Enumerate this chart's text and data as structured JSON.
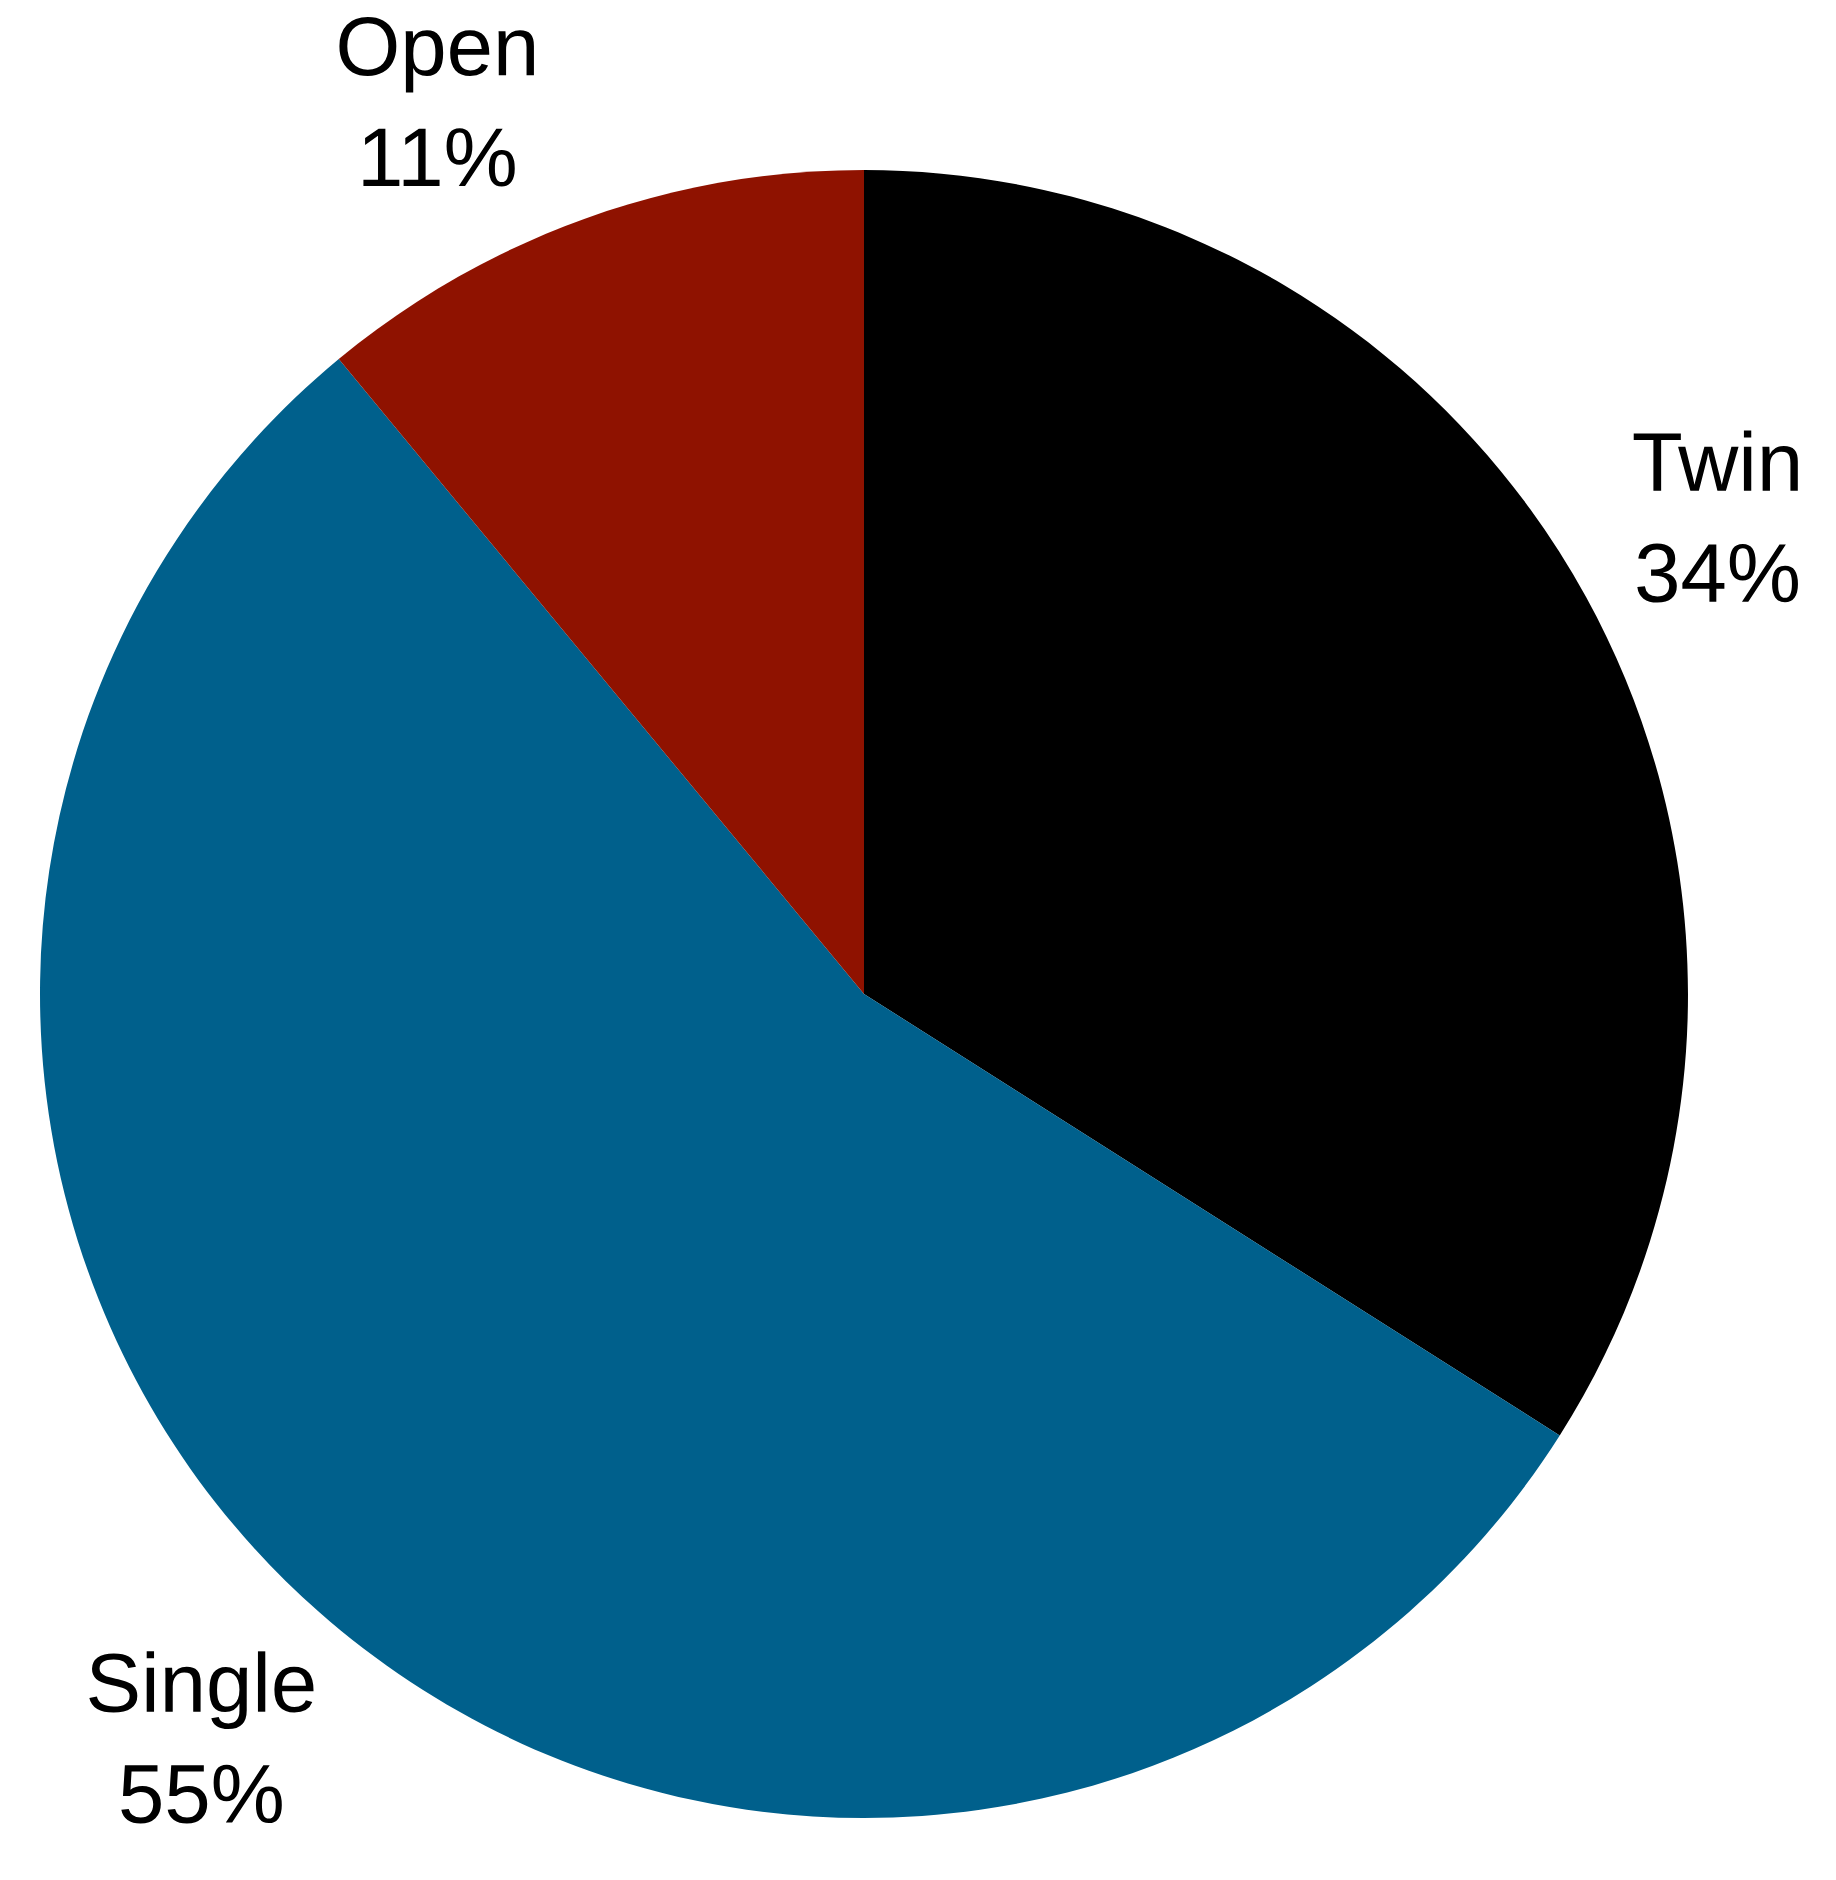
{
  "chart_data": {
    "type": "pie",
    "categories": [
      "Twin",
      "Single",
      "Open"
    ],
    "values": [
      34,
      55,
      11
    ],
    "colors": [
      "#000000",
      "#00608c",
      "#8f1200"
    ],
    "value_labels": [
      "34%",
      "55%",
      "11%"
    ]
  }
}
